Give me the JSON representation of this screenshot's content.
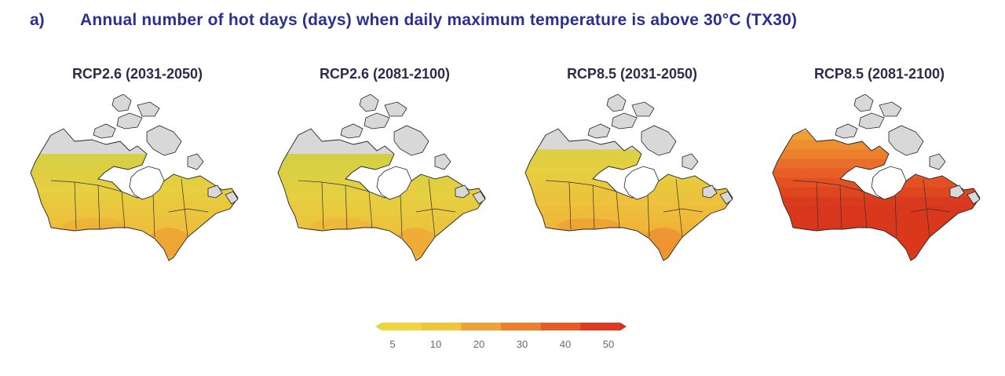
{
  "figure": {
    "label": "a)",
    "title": "Annual number of hot days (days) when daily maximum temperature is above 30°C (TX30)"
  },
  "panels": [
    {
      "title": "RCP2.6 (2031-2050)",
      "scenario": "RCP2.6",
      "period": "2031-2050",
      "intensity": 0.15,
      "coverage": 0.55
    },
    {
      "title": "RCP2.6 (2081-2100)",
      "scenario": "RCP2.6",
      "period": "2081-2100",
      "intensity": 0.12,
      "coverage": 0.55
    },
    {
      "title": "RCP8.5 (2031-2050)",
      "scenario": "RCP8.5",
      "period": "2031-2050",
      "intensity": 0.22,
      "coverage": 0.62
    },
    {
      "title": "RCP8.5 (2081-2100)",
      "scenario": "RCP8.5",
      "period": "2081-2100",
      "intensity": 0.85,
      "coverage": 0.92
    }
  ],
  "legend": {
    "ticks": [
      "5",
      "10",
      "20",
      "30",
      "40",
      "50"
    ],
    "colors": [
      "#f0d540",
      "#f2c43c",
      "#efa036",
      "#eb7e2f",
      "#e85a28",
      "#e03a20"
    ],
    "low_end_color": "#d8d84a",
    "high_end_color": "#d83018"
  },
  "colors": {
    "no_data": "#d8d8d8",
    "title": "#2b2f8f",
    "water": "#ffffff"
  }
}
